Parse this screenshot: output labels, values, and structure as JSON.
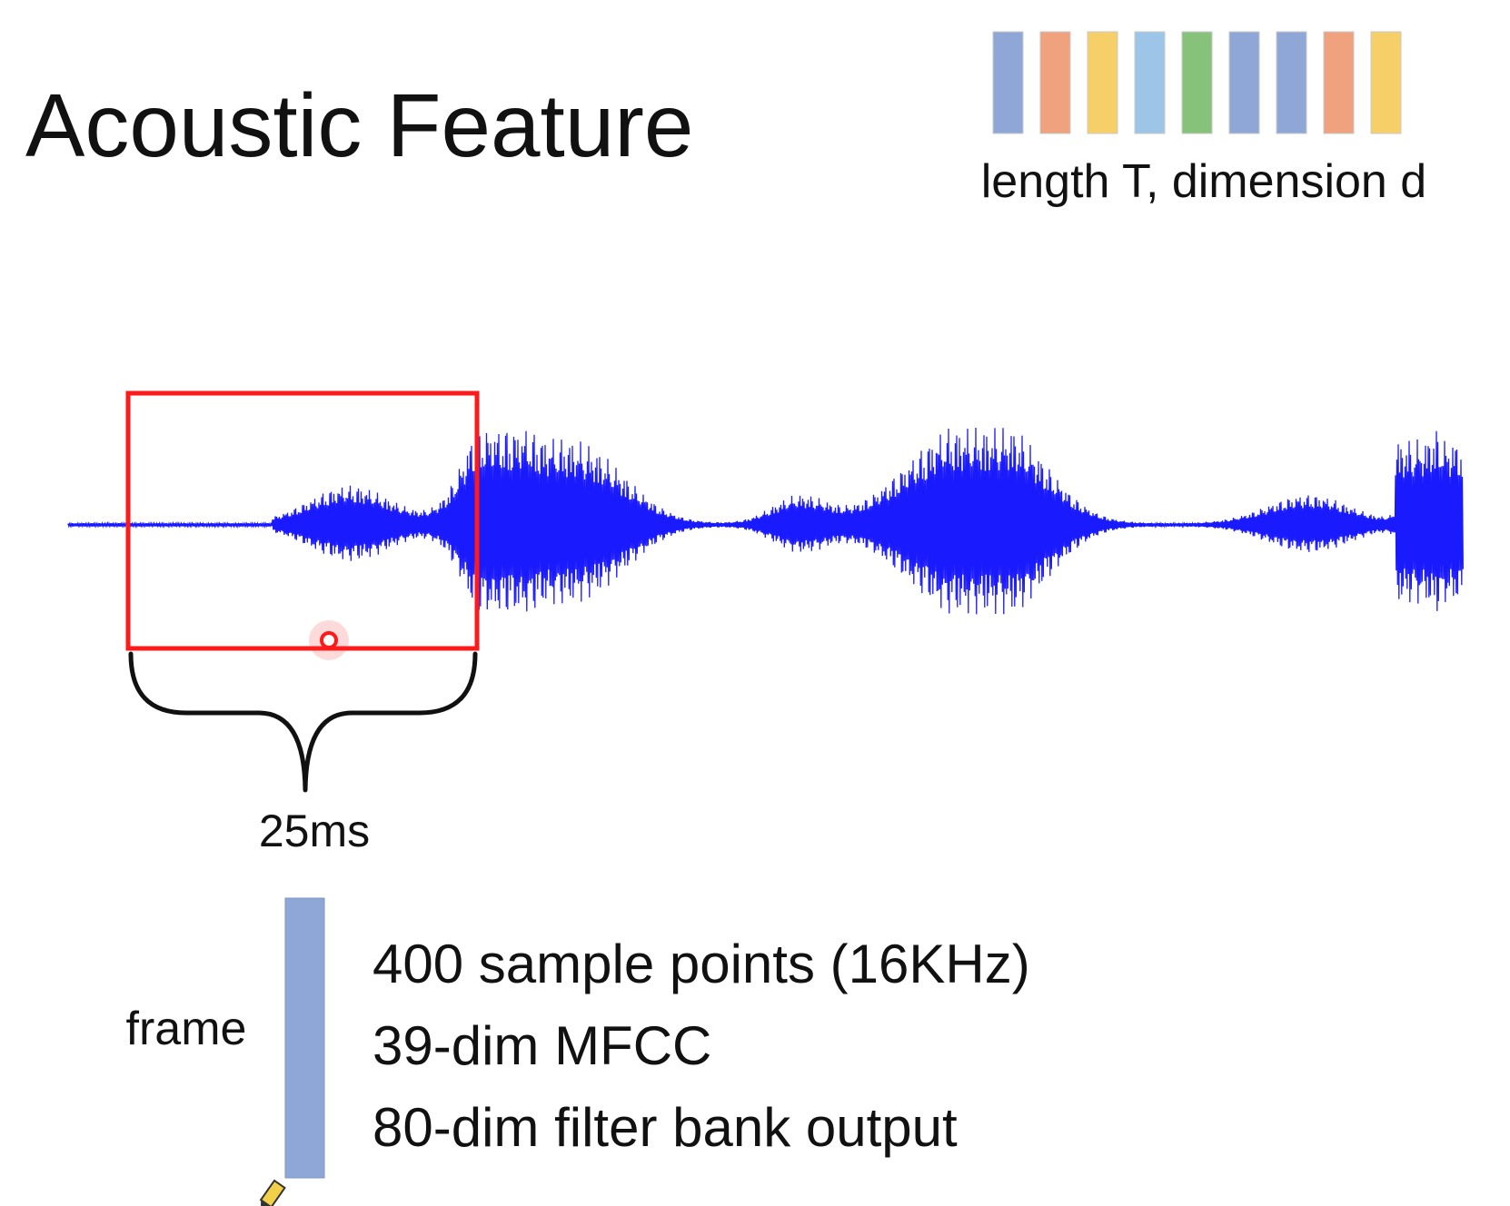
{
  "slide": {
    "title": "Acoustic Feature",
    "feature_sequence_caption": "length T, dimension d",
    "duration_label": "25ms",
    "frame_label": "frame",
    "frame_details": [
      "400 sample points (16KHz)",
      "39-dim MFCC",
      "80-dim filter bank output"
    ]
  },
  "feature_sequence": {
    "colors": [
      "#8fa7d6",
      "#f0a27f",
      "#f7cf68",
      "#9cc5e8",
      "#86c27a",
      "#8fa7d6",
      "#8fa7d6",
      "#f0a27f",
      "#f7cf68"
    ]
  },
  "frame_bar": {
    "color": "#8fa7d6"
  },
  "waveform": {
    "color": "#1a1aff"
  },
  "window_box": {
    "color": "#ff1a1a"
  },
  "icons": [
    "pointer-dot-icon",
    "pencil-cursor-icon"
  ]
}
